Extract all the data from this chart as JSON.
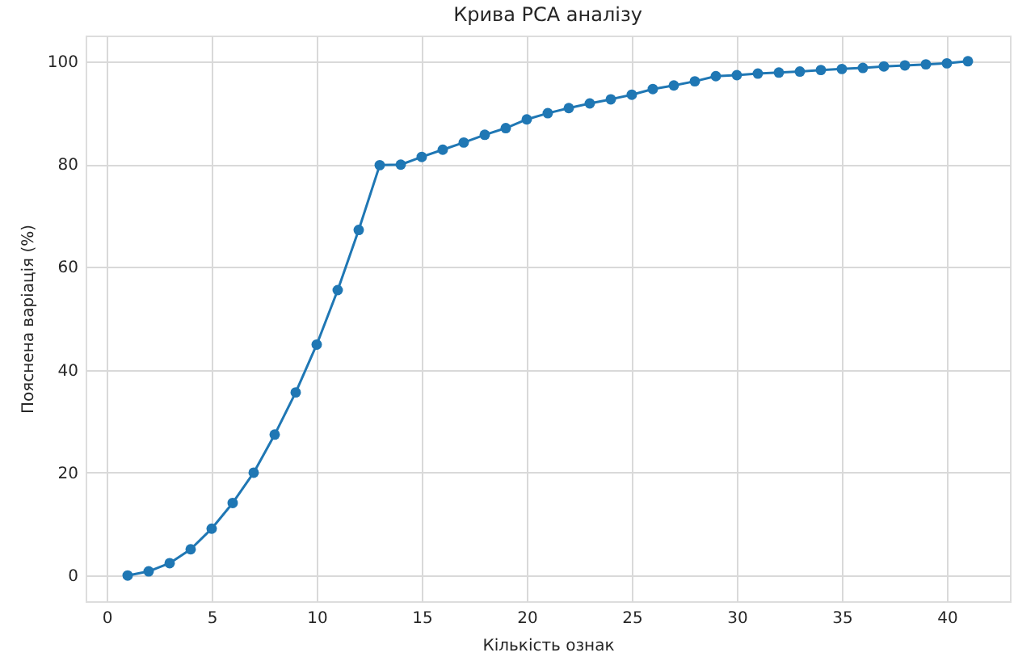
{
  "chart_data": {
    "type": "line",
    "title": "Крива PCA аналізу",
    "xlabel": "Кількість ознак",
    "ylabel": "Пояснена варіація (%)",
    "x": [
      1,
      2,
      3,
      4,
      5,
      6,
      7,
      8,
      9,
      10,
      11,
      12,
      13,
      14,
      15,
      16,
      17,
      18,
      19,
      20,
      21,
      22,
      23,
      24,
      25,
      26,
      27,
      28,
      29,
      30,
      31,
      32,
      33,
      34,
      35,
      36,
      37,
      38,
      39,
      40,
      41
    ],
    "series": [
      {
        "color": "#1f77b4",
        "values": [
          0,
          0.8,
          2.4,
          5.1,
          9.1,
          14.1,
          20.0,
          27.4,
          35.6,
          44.9,
          55.5,
          67.2,
          79.8,
          79.9,
          81.4,
          82.8,
          84.2,
          85.7,
          87.0,
          88.7,
          89.9,
          90.9,
          91.8,
          92.6,
          93.5,
          94.6,
          95.3,
          96.1,
          97.1,
          97.3,
          97.6,
          97.8,
          98.0,
          98.3,
          98.5,
          98.7,
          99.0,
          99.2,
          99.4,
          99.6,
          100.0
        ]
      }
    ],
    "xlim": [
      -1,
      43
    ],
    "ylim": [
      -5,
      105
    ],
    "xticks": [
      0,
      5,
      10,
      15,
      20,
      25,
      30,
      35,
      40
    ],
    "yticks": [
      0,
      20,
      40,
      60,
      80,
      100
    ],
    "grid": true,
    "marker": "circle",
    "line_style": "solid"
  }
}
